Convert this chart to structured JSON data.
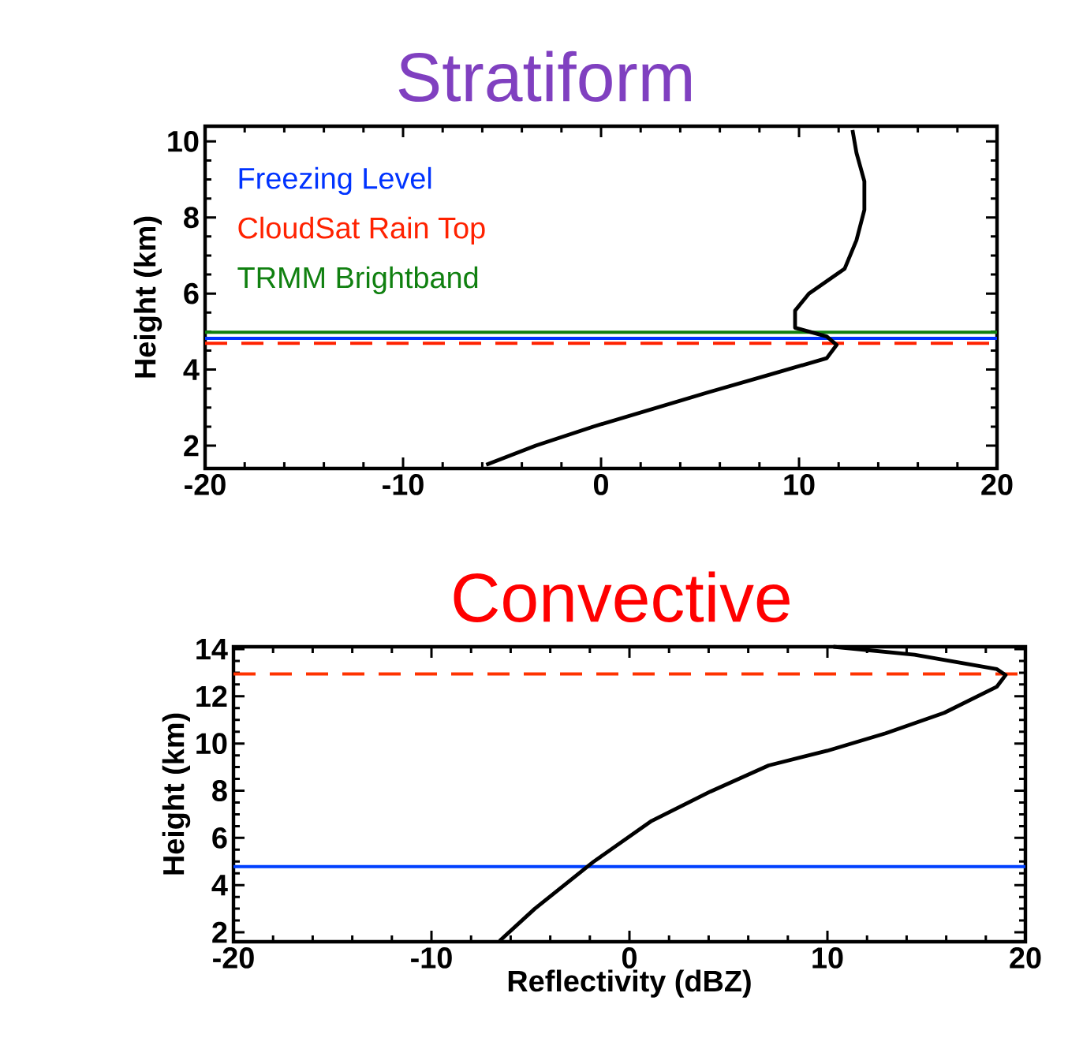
{
  "chart_data": [
    {
      "type": "line",
      "title": "Stratiform",
      "ylabel": "Height (km)",
      "xlim": [
        -20,
        20
      ],
      "ylim": [
        1.4,
        10.4
      ],
      "xticks": [
        -20,
        -10,
        0,
        10,
        20
      ],
      "yticks": [
        2,
        4,
        6,
        8,
        10
      ],
      "series": [
        {
          "color": "#000000",
          "x": [
            -5.8,
            -3.3,
            -0.4,
            2.5,
            5.4,
            8.4,
            11.4,
            11.9,
            11.4,
            9.8,
            9.8,
            10.5,
            12.3,
            12.9,
            13.3,
            13.3,
            12.9,
            12.7
          ],
          "values": [
            1.5,
            2.0,
            2.5,
            2.95,
            3.4,
            3.85,
            4.3,
            4.65,
            4.87,
            5.1,
            5.55,
            6.0,
            6.65,
            7.4,
            8.2,
            8.95,
            9.7,
            10.3
          ]
        }
      ],
      "ref_lines": [
        {
          "axis": "y",
          "value": 4.82,
          "label": "Freezing Level",
          "color": "#0033ff",
          "line_style": "solid"
        },
        {
          "axis": "y",
          "value": 4.69,
          "label": "CloudSat Rain Top",
          "color": "#ff2200",
          "line_style": "dashed"
        },
        {
          "axis": "y",
          "value": 4.98,
          "label": "TRMM Brightband",
          "color": "#108010",
          "line_style": "solid"
        }
      ]
    },
    {
      "type": "line",
      "title": "Convective",
      "xlabel": "Reflectivity (dBZ)",
      "ylabel": "Height (km)",
      "xlim": [
        -20,
        20
      ],
      "ylim": [
        1.6,
        14.1
      ],
      "xticks": [
        -20,
        -10,
        0,
        10,
        20
      ],
      "yticks": [
        2,
        4,
        6,
        8,
        10,
        12,
        14
      ],
      "series": [
        {
          "color": "#000000",
          "x": [
            -6.56,
            -4.78,
            -1.83,
            1.12,
            4.08,
            7.03,
            9.98,
            12.94,
            15.9,
            18.56,
            19.0,
            18.56,
            14.4,
            10.3
          ],
          "values": [
            1.63,
            3.0,
            4.98,
            6.72,
            7.96,
            9.07,
            9.69,
            10.43,
            11.3,
            12.41,
            12.9,
            13.15,
            13.76,
            14.1
          ]
        }
      ],
      "ref_lines": [
        {
          "axis": "y",
          "value": 12.95,
          "color": "#ff3300",
          "line_style": "dashed"
        },
        {
          "axis": "y",
          "value": 4.78,
          "color": "#0040ff",
          "line_style": "solid"
        }
      ]
    }
  ]
}
